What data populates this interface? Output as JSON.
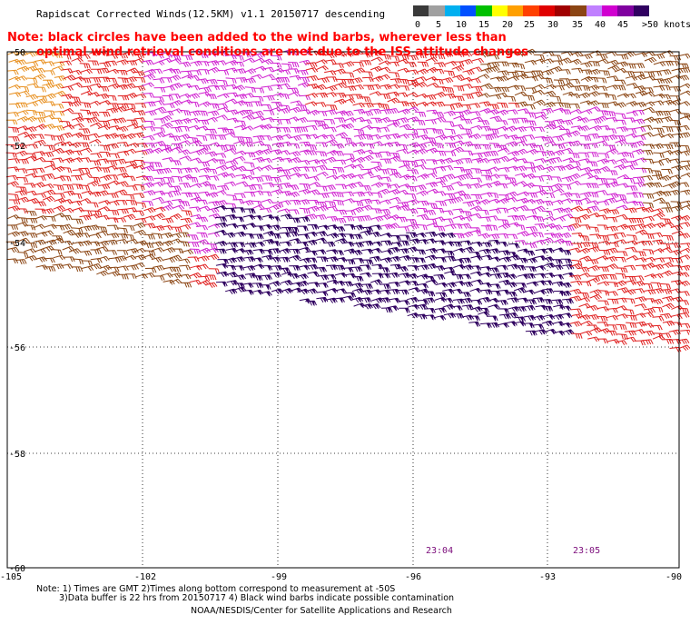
{
  "header": {
    "title": "Rapidscat Corrected Winds(12.5KM) v1.1 20150717 descending",
    "note_line1": "Note: black circles have been added to the wind barbs, wherever less than",
    "note_line2": "optimal wind retrieval conditions are met due to the ISS attitude changes"
  },
  "legend": {
    "colors": [
      "#3a3a3a",
      "#a0a0a0",
      "#00b0f0",
      "#0050ff",
      "#00c000",
      "#ffff00",
      "#ffa000",
      "#ff4000",
      "#e00000",
      "#a00000",
      "#8b4513",
      "#c080ff",
      "#d000d0",
      "#8000a0",
      "#300060"
    ],
    "labels": [
      "0",
      "5",
      "10",
      "15",
      "20",
      "25",
      "30",
      "35",
      "40",
      "45",
      ">50 knots"
    ]
  },
  "map": {
    "lat_labels": [
      "-50",
      "-52",
      "-54",
      "-56",
      "-58",
      "-60"
    ],
    "lon_labels": [
      "-105",
      "-102",
      "-99",
      "-96",
      "-93",
      "-90"
    ],
    "time_labels": [
      "23:04",
      "23:05"
    ],
    "barb_colors": {
      "orange": "#e89020",
      "red": "#e02020",
      "brown": "#8b4513",
      "magenta": "#d020d0",
      "purple": "#300060"
    }
  },
  "footer": {
    "note_line1": "Note: 1) Times are GMT 2)Times along bottom correspond to measurement at -50S",
    "note_line2": "3)Data buffer is 22 hrs from 20150717 4) Black wind barbs indicate possible contamination",
    "credit": "NOAA/NESDIS/Center for Satellite Applications and Research"
  }
}
